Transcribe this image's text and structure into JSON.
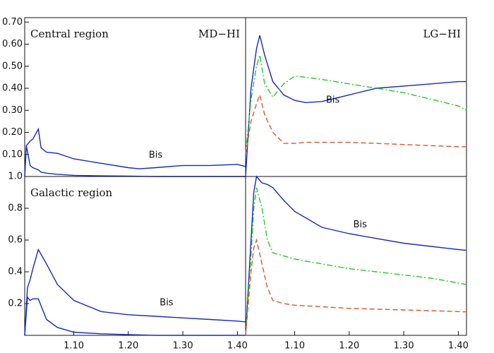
{
  "chart_data": [
    {
      "type": "line",
      "title": "Central region",
      "label_right": "MD−HI",
      "annotation": "Bis",
      "x": [
        1.01,
        1.013,
        1.02,
        1.025,
        1.035,
        1.04,
        1.05,
        1.07,
        1.1,
        1.15,
        1.2,
        1.22,
        1.25,
        1.3,
        1.35,
        1.4,
        1.415
      ],
      "series": [
        {
          "color": "#1428c8",
          "style": "solid",
          "values": [
            0,
            0.14,
            0.16,
            0.17,
            0.215,
            0.13,
            0.11,
            0.105,
            0.08,
            0.06,
            0.04,
            0.035,
            0.04,
            0.05,
            0.05,
            0.055,
            0.045
          ]
        },
        {
          "color": "#1428c8",
          "style": "solid",
          "values": [
            0,
            0.14,
            0.05,
            0.04,
            0.03,
            0.02,
            0.015,
            0.01,
            0.005,
            0.003,
            0.002,
            0.001,
            0,
            0,
            0,
            0,
            0
          ]
        }
      ],
      "xlim": [
        1.01,
        1.415
      ],
      "ylim": [
        0,
        0.72
      ],
      "yticks": [
        {
          "value": 0.1,
          "label": "0.10"
        },
        {
          "value": 0.2,
          "label": "0.20"
        },
        {
          "value": 0.3,
          "label": "0.30"
        },
        {
          "value": 0.4,
          "label": "0.40"
        },
        {
          "value": 0.5,
          "label": "0.50"
        },
        {
          "value": 0.6,
          "label": "0.60"
        },
        {
          "value": 0.7,
          "label": "0.70"
        }
      ]
    },
    {
      "type": "line",
      "label_right": "LG−HI",
      "annotation": "Bis",
      "x": [
        1.01,
        1.02,
        1.03,
        1.036,
        1.045,
        1.06,
        1.08,
        1.1,
        1.12,
        1.15,
        1.2,
        1.25,
        1.3,
        1.35,
        1.4,
        1.415
      ],
      "series": [
        {
          "color": "#1428c8",
          "style": "solid",
          "values": [
            0,
            0.4,
            0.58,
            0.64,
            0.55,
            0.43,
            0.37,
            0.345,
            0.335,
            0.34,
            0.37,
            0.4,
            0.41,
            0.42,
            0.43,
            0.43
          ]
        },
        {
          "color": "#22cc22",
          "style": "dashdot",
          "values": [
            0.1,
            0.35,
            0.5,
            0.55,
            0.42,
            0.36,
            0.42,
            0.455,
            0.45,
            0.44,
            0.42,
            0.4,
            0.38,
            0.35,
            0.32,
            0.3
          ]
        },
        {
          "color": "#e8502a",
          "style": "dashed",
          "values": [
            0.1,
            0.25,
            0.33,
            0.37,
            0.28,
            0.2,
            0.15,
            0.15,
            0.155,
            0.155,
            0.155,
            0.15,
            0.145,
            0.14,
            0.135,
            0.135
          ]
        }
      ],
      "xlim": [
        1.01,
        1.415
      ],
      "ylim": [
        0,
        0.72
      ]
    },
    {
      "type": "line",
      "title": "Galactic region",
      "annotation": "Bis",
      "x": [
        1.01,
        1.015,
        1.02,
        1.025,
        1.035,
        1.05,
        1.07,
        1.1,
        1.15,
        1.2,
        1.25,
        1.3,
        1.35,
        1.4,
        1.415
      ],
      "series": [
        {
          "color": "#1428c8",
          "style": "solid",
          "values": [
            0,
            0.3,
            0.35,
            0.42,
            0.54,
            0.45,
            0.32,
            0.22,
            0.15,
            0.13,
            0.12,
            0.11,
            0.1,
            0.09,
            0.085
          ]
        },
        {
          "color": "#1428c8",
          "style": "solid",
          "values": [
            0,
            0.24,
            0.22,
            0.23,
            0.23,
            0.1,
            0.05,
            0.02,
            0.01,
            0.005,
            0,
            0,
            0,
            0,
            0
          ]
        }
      ],
      "xlim": [
        1.01,
        1.415
      ],
      "ylim": [
        0,
        1.0
      ],
      "xticks": [
        {
          "value": 1.1,
          "label": "1.10"
        },
        {
          "value": 1.2,
          "label": "1.20"
        },
        {
          "value": 1.3,
          "label": "1.30"
        },
        {
          "value": 1.4,
          "label": "1.40"
        }
      ],
      "yticks": [
        0.2,
        0.4,
        0.6,
        0.8,
        {
          "value": 1.0,
          "label": "1.0"
        }
      ]
    },
    {
      "type": "line",
      "annotation": "Bis",
      "x": [
        1.01,
        1.02,
        1.025,
        1.03,
        1.04,
        1.05,
        1.06,
        1.08,
        1.1,
        1.15,
        1.2,
        1.25,
        1.3,
        1.35,
        1.4,
        1.415
      ],
      "series": [
        {
          "color": "#1428c8",
          "style": "solid",
          "values": [
            0,
            0.6,
            0.9,
            1.0,
            0.96,
            0.95,
            0.93,
            0.85,
            0.78,
            0.68,
            0.64,
            0.61,
            0.58,
            0.56,
            0.54,
            0.535
          ]
        },
        {
          "color": "#22cc22",
          "style": "dashdot",
          "values": [
            0,
            0.5,
            0.8,
            0.93,
            0.8,
            0.6,
            0.52,
            0.5,
            0.48,
            0.45,
            0.42,
            0.4,
            0.38,
            0.36,
            0.33,
            0.32
          ]
        },
        {
          "color": "#e8502a",
          "style": "dashed",
          "values": [
            0,
            0.4,
            0.55,
            0.6,
            0.45,
            0.3,
            0.22,
            0.2,
            0.19,
            0.18,
            0.17,
            0.165,
            0.16,
            0.155,
            0.15,
            0.148
          ]
        }
      ],
      "xlim": [
        1.01,
        1.415
      ],
      "ylim": [
        0,
        1.0
      ],
      "xticks": [
        {
          "value": 1.1,
          "label": "1.10"
        },
        {
          "value": 1.2,
          "label": "1.20"
        },
        {
          "value": 1.3,
          "label": "1.30"
        },
        {
          "value": 1.4,
          "label": "1.40"
        }
      ]
    }
  ]
}
